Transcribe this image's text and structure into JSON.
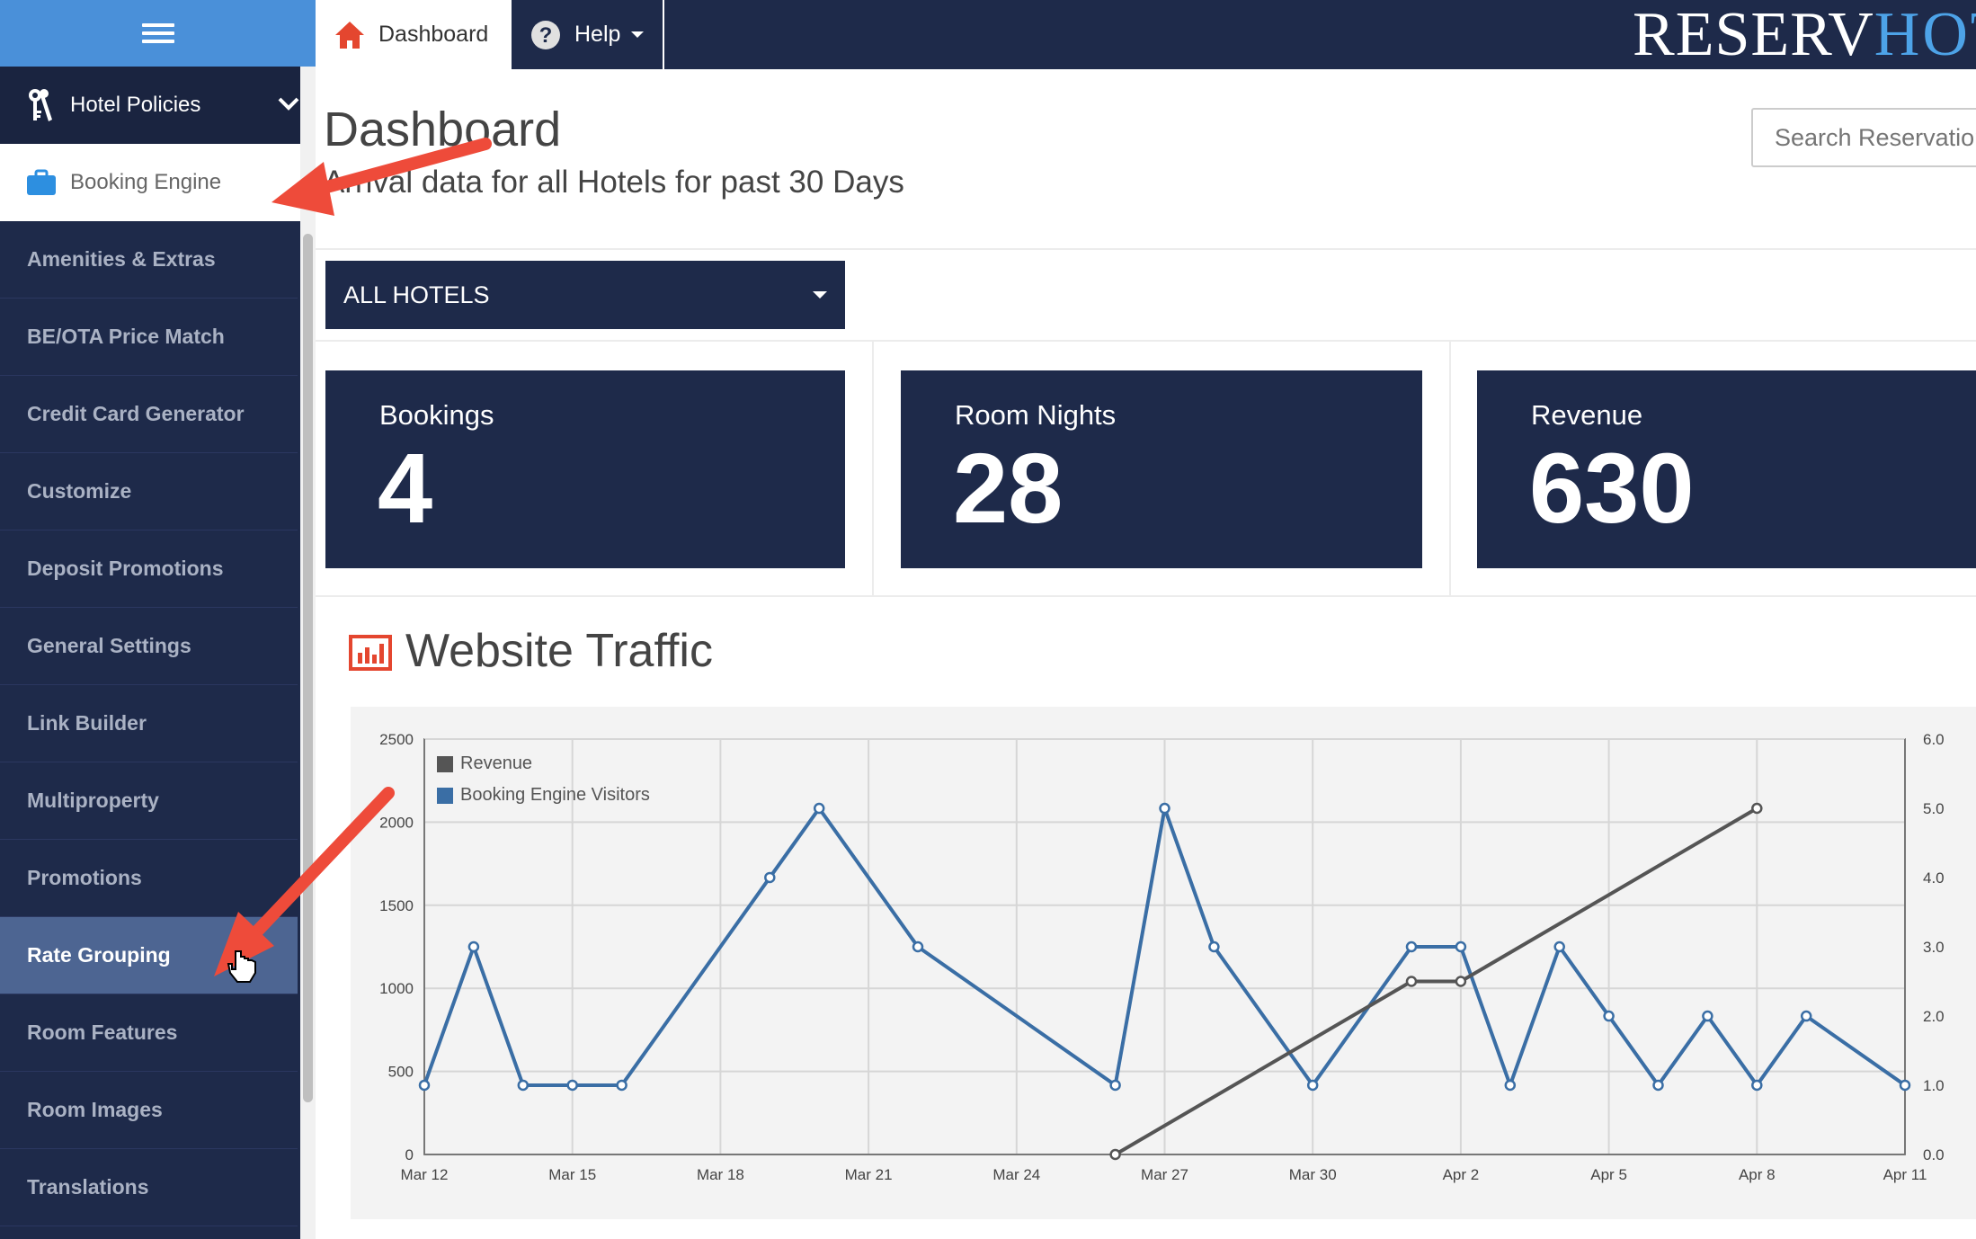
{
  "sidebar": {
    "policies_label": "Hotel Policies",
    "booking_label": "Booking Engine",
    "items": [
      {
        "label": "Amenities & Extras"
      },
      {
        "label": "BE/OTA Price Match"
      },
      {
        "label": "Credit Card Generator"
      },
      {
        "label": "Customize"
      },
      {
        "label": "Deposit Promotions"
      },
      {
        "label": "General Settings"
      },
      {
        "label": "Link Builder"
      },
      {
        "label": "Multiproperty"
      },
      {
        "label": "Promotions"
      },
      {
        "label": "Rate Grouping"
      },
      {
        "label": "Room Features"
      },
      {
        "label": "Room Images"
      },
      {
        "label": "Translations"
      }
    ],
    "active_item": "Rate Grouping"
  },
  "topbar": {
    "dashboard_tab": "Dashboard",
    "help_tab": "Help",
    "logo_part1": "RESERV",
    "logo_part2": "HOTEL"
  },
  "main": {
    "title": "Dashboard",
    "subtitle": "Arrival data for all Hotels for past 30 Days",
    "search_placeholder": "Search Reservations",
    "hotel_select": "ALL HOTELS",
    "stats": [
      {
        "label": "Bookings",
        "value": "4"
      },
      {
        "label": "Room Nights",
        "value": "28"
      },
      {
        "label": "Revenue",
        "value": "630"
      }
    ],
    "traffic_title": "Website Traffic"
  },
  "colors": {
    "navy": "#1e2a4a",
    "sidebar_accent": "#4a90d9",
    "active_item": "#4d6592",
    "series_visitors": "#3a6ea5",
    "series_revenue": "#555555",
    "arrow": "#ee4b3a"
  },
  "chart_data": {
    "type": "line",
    "x_tick_labels": [
      "Mar 12",
      "Mar 15",
      "Mar 18",
      "Mar 21",
      "Mar 24",
      "Mar 27",
      "Mar 30",
      "Apr 2",
      "Apr 5",
      "Apr 8",
      "Apr 11"
    ],
    "x": [
      "Mar 12",
      "Mar 13",
      "Mar 14",
      "Mar 15",
      "Mar 16",
      "Mar 17",
      "Mar 18",
      "Mar 19",
      "Mar 20",
      "Mar 21",
      "Mar 22",
      "Mar 23",
      "Mar 24",
      "Mar 25",
      "Mar 26",
      "Mar 27",
      "Mar 28",
      "Mar 29",
      "Mar 30",
      "Mar 31",
      "Apr 1",
      "Apr 2",
      "Apr 3",
      "Apr 4",
      "Apr 5",
      "Apr 6",
      "Apr 7",
      "Apr 8",
      "Apr 9",
      "Apr 10",
      "Apr 11"
    ],
    "series": [
      {
        "name": "Booking Engine Visitors",
        "axis": "left",
        "values": [
          417,
          1250,
          417,
          417,
          417,
          null,
          null,
          1667,
          2083,
          null,
          1250,
          null,
          null,
          null,
          417,
          2083,
          1250,
          null,
          417,
          null,
          1250,
          1250,
          417,
          1250,
          833,
          417,
          833,
          417,
          833,
          null,
          417
        ]
      },
      {
        "name": "Revenue",
        "axis": "right",
        "points": [
          [
            "Mar 26",
            0.0
          ],
          [
            "Apr 1",
            2.5
          ],
          [
            "Apr 2",
            2.5
          ],
          [
            "Apr 8",
            5.0
          ]
        ]
      }
    ],
    "y_left": {
      "range": [
        0,
        2500
      ],
      "ticks": [
        "0",
        "500",
        "1000",
        "1500",
        "2000",
        "2500"
      ]
    },
    "y_right": {
      "range": [
        0,
        6
      ],
      "ticks": [
        "0.0",
        "1.0",
        "2.0",
        "3.0",
        "4.0",
        "5.0",
        "6.0"
      ]
    },
    "legend": [
      "Revenue",
      "Booking Engine Visitors"
    ],
    "legend_position": "top-left",
    "grid": true
  }
}
